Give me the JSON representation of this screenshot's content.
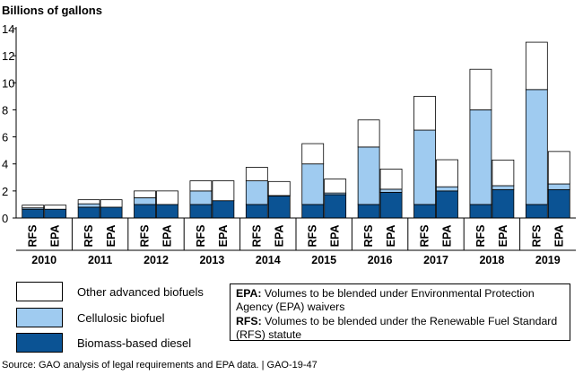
{
  "chart_data": {
    "type": "bar",
    "stacked": true,
    "ylabel": "Billions of gallons",
    "ylim": [
      0,
      14
    ],
    "yticks": [
      0,
      2,
      4,
      6,
      8,
      10,
      12,
      14
    ],
    "grid": false,
    "years": [
      "2010",
      "2011",
      "2012",
      "2013",
      "2014",
      "2015",
      "2016",
      "2017",
      "2018",
      "2019"
    ],
    "bar_labels": [
      "RFS",
      "EPA"
    ],
    "series": [
      {
        "name": "Biomass-based diesel",
        "color": "#0b5394",
        "rfs": [
          0.65,
          0.8,
          1.0,
          1.0,
          1.0,
          1.0,
          1.0,
          1.0,
          1.0,
          1.0
        ],
        "epa": [
          0.65,
          0.8,
          1.0,
          1.28,
          1.63,
          1.73,
          1.9,
          2.0,
          2.1,
          2.1
        ]
      },
      {
        "name": "Cellulosic biofuel",
        "color": "#9fcbf0",
        "rfs": [
          0.1,
          0.25,
          0.5,
          1.0,
          1.75,
          3.0,
          4.25,
          5.5,
          7.0,
          8.5
        ],
        "epa": [
          0.0,
          0.0,
          0.0,
          0.0,
          0.03,
          0.12,
          0.23,
          0.31,
          0.29,
          0.42
        ]
      },
      {
        "name": "Other advanced biofuels",
        "color": "#ffffff",
        "rfs": [
          0.2,
          0.3,
          0.5,
          0.75,
          1.0,
          1.5,
          2.0,
          2.5,
          3.0,
          3.5
        ],
        "epa": [
          0.3,
          0.55,
          1.0,
          1.47,
          1.04,
          1.03,
          1.49,
          2.0,
          1.9,
          2.4
        ]
      }
    ]
  },
  "legend": {
    "other": "Other advanced biofuels",
    "cellulosic": "Cellulosic biofuel",
    "biomass": "Biomass-based diesel"
  },
  "notes": {
    "epa_key": "EPA:",
    "epa_text": "Volumes to be blended under Environmental Protection Agency (EPA) waivers",
    "rfs_key": "RFS:",
    "rfs_text": "Volumes to be blended under the Renewable Fuel Standard (RFS) statute"
  },
  "source": "Source: GAO analysis of legal requirements and EPA data.  |  GAO-19-47"
}
